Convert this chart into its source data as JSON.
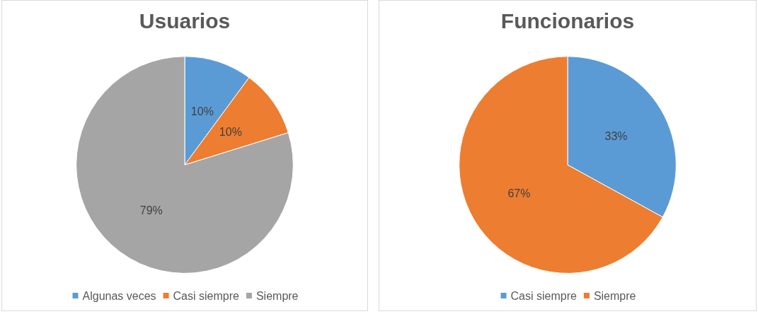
{
  "chart_data": [
    {
      "type": "pie",
      "title": "Usuarios",
      "categories": [
        "Algunas veces",
        "Casi siempre",
        "Siempre"
      ],
      "values": [
        10,
        10,
        79
      ],
      "value_labels": [
        "10%",
        "10%",
        "79%"
      ],
      "colors": [
        "#5b9bd5",
        "#ed7d31",
        "#a5a5a5"
      ],
      "legend": "bottom"
    },
    {
      "type": "pie",
      "title": "Funcionarios",
      "categories": [
        "Casi siempre",
        "Siempre"
      ],
      "values": [
        33,
        67
      ],
      "value_labels": [
        "33%",
        "67%"
      ],
      "colors": [
        "#5b9bd5",
        "#ed7d31"
      ],
      "legend": "bottom"
    }
  ]
}
